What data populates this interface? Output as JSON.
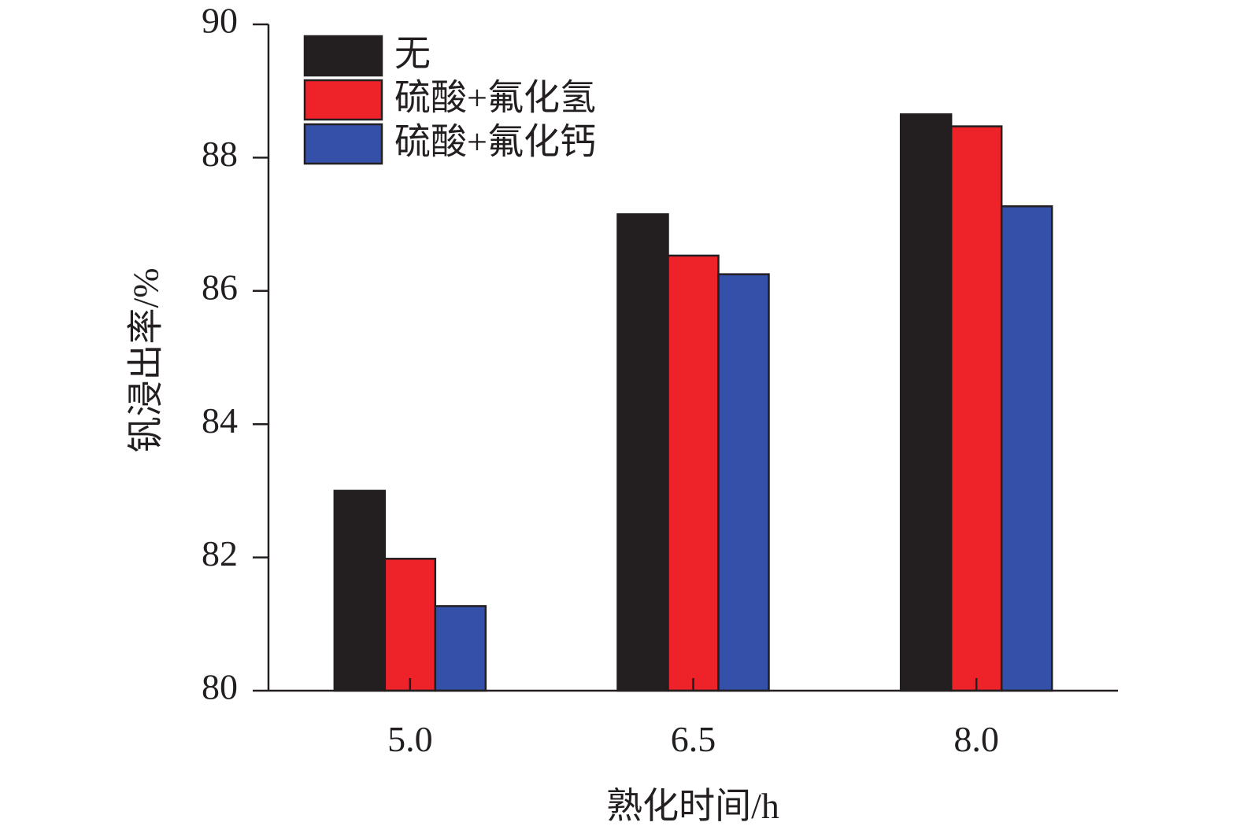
{
  "chart_data": {
    "type": "bar",
    "title": "",
    "xlabel": "熟化时间/h",
    "ylabel": "钒浸出率/%",
    "categories": [
      "5.0",
      "6.5",
      "8.0"
    ],
    "series": [
      {
        "name": "无",
        "color": "#231f20",
        "values": [
          83.0,
          87.15,
          88.65
        ]
      },
      {
        "name": "硫酸+氟化氢",
        "color": "#ee2229",
        "values": [
          81.98,
          86.53,
          88.47
        ]
      },
      {
        "name": "硫酸+氟化钙",
        "color": "#3450a8",
        "values": [
          81.27,
          86.25,
          87.27
        ]
      }
    ],
    "ylim": [
      80,
      90
    ],
    "yticks": [
      "80",
      "82",
      "84",
      "86",
      "88",
      "90"
    ],
    "grid": false,
    "legend_position": "top-left"
  }
}
